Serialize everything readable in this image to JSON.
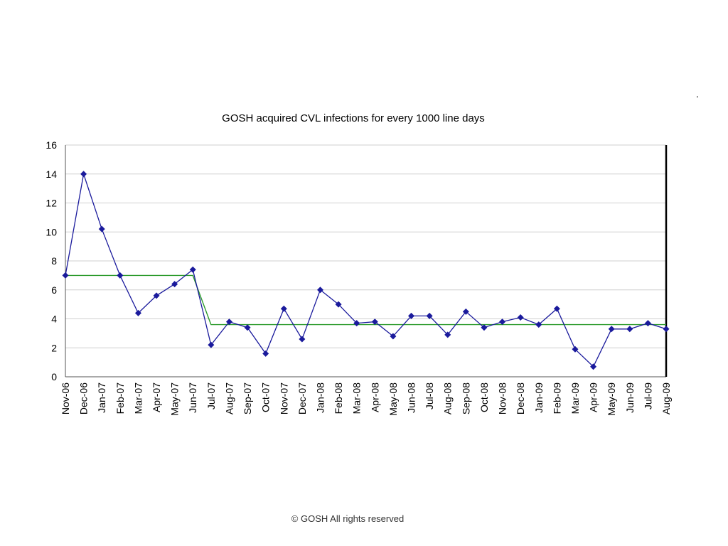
{
  "page": {
    "stray_mark": ".",
    "copyright": "© GOSH All rights reserved"
  },
  "chart_data": {
    "type": "line",
    "title": "GOSH acquired CVL infections for every 1000 line days",
    "xlabel": "",
    "ylabel": "",
    "ylim": [
      0,
      16
    ],
    "yticks": [
      0,
      2,
      4,
      6,
      8,
      10,
      12,
      14,
      16
    ],
    "grid": true,
    "legend": "none",
    "categories": [
      "Nov-06",
      "Dec-06",
      "Jan-07",
      "Feb-07",
      "Mar-07",
      "Apr-07",
      "May-07",
      "Jun-07",
      "Jul-07",
      "Aug-07",
      "Sep-07",
      "Oct-07",
      "Nov-07",
      "Dec-07",
      "Jan-08",
      "Feb-08",
      "Mar-08",
      "Apr-08",
      "May-08",
      "Jun-08",
      "Jul-08",
      "Aug-08",
      "Sep-08",
      "Oct-08",
      "Nov-08",
      "Dec-08",
      "Jan-09",
      "Feb-09",
      "Mar-09",
      "Apr-09",
      "May-09",
      "Jun-09",
      "Jul-09",
      "Aug-09"
    ],
    "series": [
      {
        "color": "#1a1a9c",
        "marker": "diamond",
        "values": [
          7.0,
          14.0,
          10.2,
          7.0,
          4.4,
          5.6,
          6.4,
          7.4,
          2.2,
          3.8,
          3.4,
          1.6,
          4.7,
          2.6,
          6.0,
          5.0,
          3.7,
          3.8,
          2.8,
          4.2,
          4.2,
          2.9,
          4.5,
          3.4,
          3.8,
          4.1,
          3.6,
          4.7,
          1.9,
          0.7,
          3.3,
          3.3,
          3.7,
          3.3
        ]
      },
      {
        "color": "#2a9a2a",
        "marker": "none",
        "values": [
          7.0,
          7.0,
          7.0,
          7.0,
          7.0,
          7.0,
          7.0,
          7.0,
          3.6,
          3.6,
          3.6,
          3.6,
          3.6,
          3.6,
          3.6,
          3.6,
          3.6,
          3.6,
          3.6,
          3.6,
          3.6,
          3.6,
          3.6,
          3.6,
          3.6,
          3.6,
          3.6,
          3.6,
          3.6,
          3.6,
          3.6,
          3.6,
          3.6,
          3.6
        ]
      }
    ],
    "colors": {
      "grid": "#cfcfcf",
      "axis": "#000000"
    }
  }
}
